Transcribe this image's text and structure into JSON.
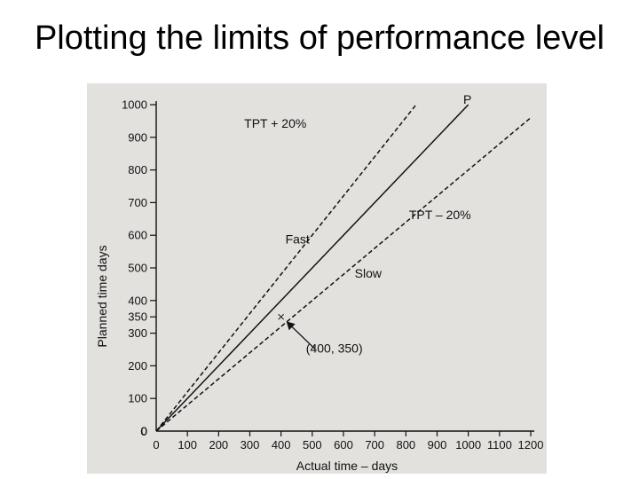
{
  "slide": {
    "title": "Plotting the limits of performance level"
  },
  "chart_data": {
    "type": "line",
    "title": "",
    "xlabel": "Actual time – days",
    "ylabel": "Planned time days",
    "xlim": [
      0,
      1200
    ],
    "ylim": [
      0,
      1000
    ],
    "x_ticks": [
      "0",
      "100",
      "200",
      "300",
      "400",
      "500",
      "600",
      "700",
      "800",
      "900",
      "1000",
      "1100",
      "1200"
    ],
    "y_ticks": [
      "0",
      "100",
      "200",
      "300",
      "350",
      "400",
      "500",
      "600",
      "700",
      "800",
      "900",
      "1000"
    ],
    "series": [
      {
        "name": "P",
        "style": "solid",
        "x": [
          0,
          1000
        ],
        "y": [
          0,
          1000
        ]
      },
      {
        "name": "TPT + 20%",
        "style": "dashed",
        "x": [
          0,
          833
        ],
        "y": [
          0,
          1000
        ]
      },
      {
        "name": "TPT – 20%",
        "style": "dashed",
        "x": [
          0,
          1200
        ],
        "y": [
          0,
          960
        ]
      }
    ],
    "point": {
      "x": 400,
      "y": 350,
      "label": "(400, 350)"
    },
    "region_labels": {
      "fast": "Fast",
      "slow": "Slow"
    },
    "origin_label": "0",
    "grid": false,
    "colors": {
      "line": "#111111",
      "background": "#e3e1de"
    }
  }
}
